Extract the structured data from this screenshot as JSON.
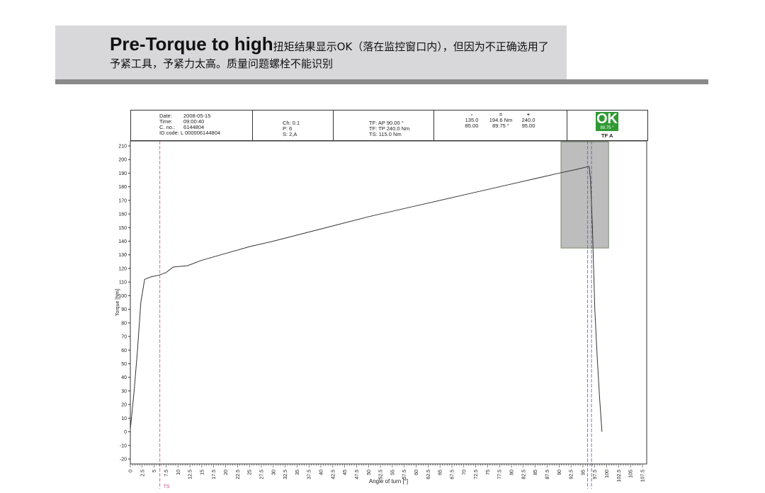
{
  "header": {
    "title_en": "Pre-Torque to high",
    "title_cn_line1": "扭矩结果显示OK（落在监控窗口内），但因为不正确选用了",
    "title_cn_line2": "予紧工具，予紧力太高。质量问题螺栓不能识别"
  },
  "info": {
    "date_label": "Date:",
    "date": "2008-05-15",
    "time_label": "Time:",
    "time": "09:00:40",
    "cno_label": "C. no.:",
    "cno": "6144804",
    "id_label": "ID code:",
    "id": "L 000006144804",
    "ch": "Ch: 0.1",
    "p": "P:   6",
    "s": "S:   2,A",
    "tf_ap": "TF: AP 90.00  °",
    "tf_tp": "TF: TP 240.0 Nm",
    "ts": "TS:      115.0 Nm",
    "minus": "-",
    "equals": "=",
    "plus": "+",
    "torque_min": "135.0",
    "torque_val": "194.6 Nm",
    "torque_max": "240.0",
    "angle_min": "85.00",
    "angle_val": "89.75 °",
    "angle_max": "95.00",
    "ok": "OK",
    "ok_angle": "89.75 °",
    "ok_mode": "TF A",
    "ok_color": "#2f9a34"
  },
  "chart_data": {
    "type": "line",
    "xlabel": "Angle of turn [°]",
    "ylabel": "Torque [Nm]",
    "xlim": [
      0,
      107.5
    ],
    "ylim": [
      -20,
      210
    ],
    "xticks": [
      0,
      2.5,
      5,
      7.5,
      10,
      12.5,
      15,
      17.5,
      20,
      22.5,
      25,
      27.5,
      30,
      32.5,
      35,
      37.5,
      40,
      42.5,
      45,
      47.5,
      50,
      52.5,
      55,
      57.5,
      60,
      62.5,
      65,
      67.5,
      70,
      72.5,
      75,
      77.5,
      80,
      82.5,
      85,
      87.5,
      90,
      92.5,
      95,
      97.5,
      100,
      102.5,
      105,
      107.5
    ],
    "yticks": [
      -20,
      -10,
      0,
      10,
      20,
      30,
      40,
      50,
      60,
      70,
      80,
      90,
      100,
      110,
      120,
      130,
      140,
      150,
      160,
      170,
      180,
      190,
      200,
      210
    ],
    "series": [
      {
        "x": [
          0,
          0.8,
          1.5,
          2.2,
          3,
          4.5,
          6,
          7.5,
          9,
          12,
          15,
          20,
          25,
          30,
          40,
          50,
          60,
          70,
          80,
          90,
          94,
          96.3,
          96.6,
          97,
          97.5,
          98,
          98.5,
          99
        ],
        "y": [
          2,
          30,
          60,
          95,
          112,
          114,
          115,
          117,
          121,
          122,
          126,
          131,
          136,
          140,
          149,
          158,
          166,
          174,
          182,
          190,
          193,
          195,
          185,
          150,
          90,
          55,
          25,
          0
        ]
      }
    ],
    "window": {
      "x": [
        90.4,
        100.4
      ],
      "y": [
        135,
        213
      ]
    },
    "markers": [
      {
        "x": 6.2,
        "label": "TS",
        "color": "#c0508a"
      },
      {
        "x": 96.0,
        "color": "#5060a0"
      },
      {
        "x": 96.8,
        "color": "#5060a0"
      }
    ],
    "window_color": "#bdbdbd",
    "line_color": "#333333",
    "grid": false
  }
}
